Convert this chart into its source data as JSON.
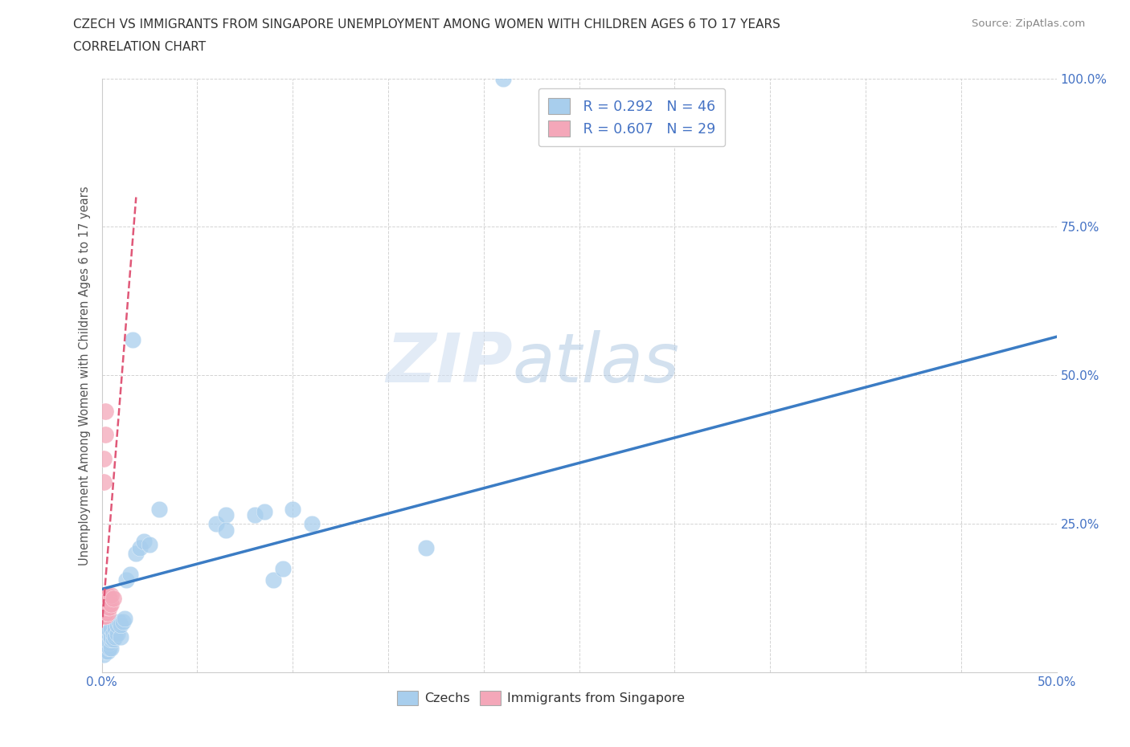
{
  "title_line1": "CZECH VS IMMIGRANTS FROM SINGAPORE UNEMPLOYMENT AMONG WOMEN WITH CHILDREN AGES 6 TO 17 YEARS",
  "title_line2": "CORRELATION CHART",
  "source_text": "Source: ZipAtlas.com",
  "ylabel": "Unemployment Among Women with Children Ages 6 to 17 years",
  "xlim": [
    0.0,
    0.5
  ],
  "ylim": [
    0.0,
    1.0
  ],
  "czech_color": "#A8CEED",
  "singapore_color": "#F4A7B9",
  "trend_czech_color": "#3B7CC4",
  "trend_singapore_color": "#E05878",
  "legend_R1": "R = 0.292",
  "legend_N1": "N = 46",
  "legend_R2": "R = 0.607",
  "legend_N2": "N = 29",
  "watermark_ZIP": "ZIP",
  "watermark_atlas": "atlas",
  "background_color": "#ffffff",
  "grid_color": "#c8c8c8",
  "czech_x": [
    0.001,
    0.001,
    0.002,
    0.002,
    0.002,
    0.003,
    0.003,
    0.003,
    0.003,
    0.004,
    0.004,
    0.004,
    0.005,
    0.005,
    0.005,
    0.005,
    0.006,
    0.006,
    0.007,
    0.007,
    0.008,
    0.008,
    0.009,
    0.01,
    0.01,
    0.011,
    0.012,
    0.013,
    0.015,
    0.016,
    0.018,
    0.02,
    0.022,
    0.025,
    0.03,
    0.06,
    0.065,
    0.065,
    0.08,
    0.085,
    0.09,
    0.095,
    0.1,
    0.11,
    0.17,
    0.21
  ],
  "czech_y": [
    0.03,
    0.04,
    0.035,
    0.05,
    0.06,
    0.035,
    0.045,
    0.055,
    0.065,
    0.04,
    0.05,
    0.07,
    0.04,
    0.055,
    0.06,
    0.075,
    0.055,
    0.065,
    0.06,
    0.075,
    0.065,
    0.08,
    0.085,
    0.06,
    0.08,
    0.085,
    0.09,
    0.155,
    0.165,
    0.56,
    0.2,
    0.21,
    0.22,
    0.215,
    0.275,
    0.25,
    0.265,
    0.24,
    0.265,
    0.27,
    0.155,
    0.175,
    0.275,
    0.25,
    0.21,
    1.0
  ],
  "singapore_x": [
    0.0,
    0.0,
    0.0,
    0.0,
    0.001,
    0.001,
    0.001,
    0.001,
    0.001,
    0.001,
    0.001,
    0.001,
    0.001,
    0.002,
    0.002,
    0.002,
    0.002,
    0.002,
    0.002,
    0.003,
    0.003,
    0.003,
    0.003,
    0.003,
    0.004,
    0.004,
    0.005,
    0.005,
    0.006
  ],
  "singapore_y": [
    0.095,
    0.1,
    0.115,
    0.12,
    0.095,
    0.1,
    0.105,
    0.11,
    0.12,
    0.125,
    0.13,
    0.32,
    0.36,
    0.095,
    0.1,
    0.105,
    0.115,
    0.4,
    0.44,
    0.1,
    0.11,
    0.115,
    0.12,
    0.13,
    0.11,
    0.125,
    0.115,
    0.13,
    0.125
  ],
  "czech_trend_x0": 0.0,
  "czech_trend_y0": 0.14,
  "czech_trend_x1": 0.5,
  "czech_trend_y1": 0.565,
  "sing_trend_x0": 0.0,
  "sing_trend_y0": 0.075,
  "sing_trend_x1": 0.018,
  "sing_trend_y1": 0.8
}
